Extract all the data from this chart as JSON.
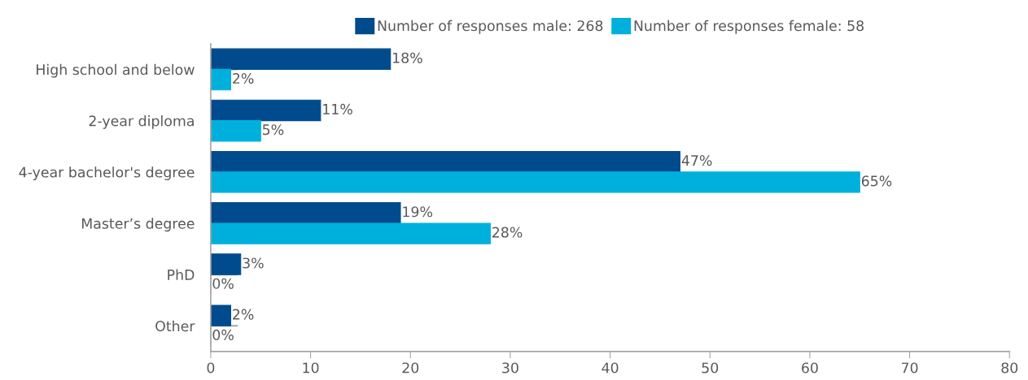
{
  "chart_data": {
    "type": "bar",
    "orientation": "horizontal",
    "categories": [
      "High school and below",
      "2-year diploma",
      "4-year bachelor's degree",
      "Master’s degree",
      "PhD",
      "Other"
    ],
    "series": [
      {
        "name": "Number of responses male: 268",
        "color": "#004b8d",
        "values": [
          18,
          11,
          47,
          19,
          3,
          2
        ],
        "value_labels": [
          "18%",
          "11%",
          "47%",
          "19%",
          "3%",
          "2%"
        ]
      },
      {
        "name": "Number of responses female: 58",
        "color": "#00b0dc",
        "values": [
          2,
          5,
          65,
          28,
          0,
          0
        ],
        "value_labels": [
          "2%",
          "5%",
          "65%",
          "28%",
          "0%",
          "0%"
        ]
      }
    ],
    "xlim": [
      0,
      80
    ],
    "xticks": [
      0,
      10,
      20,
      30,
      40,
      50,
      60,
      70,
      80
    ],
    "grid": false,
    "legend": "top"
  }
}
